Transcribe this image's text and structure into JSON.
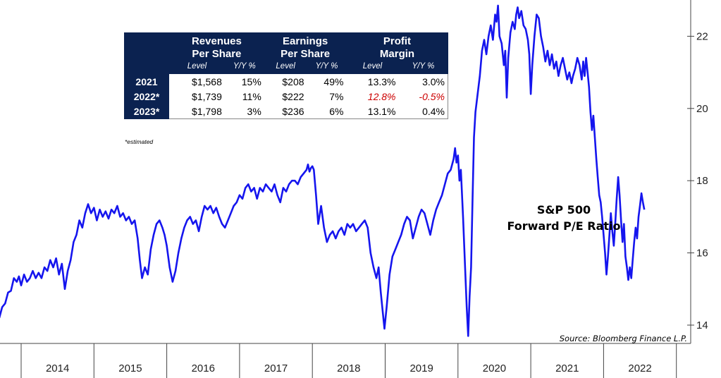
{
  "chart_data": {
    "type": "line",
    "title": "S&P 500",
    "subtitle": "Forward P/E Ratio",
    "source": "Source: Bloomberg Finance L.P.",
    "xlabel": "",
    "ylabel": "",
    "ylim": [
      13.4,
      23.0
    ],
    "xlim": [
      2013.7,
      2022.93
    ],
    "y_ticks": [
      {
        "value": 22,
        "label": "22"
      },
      {
        "value": 20,
        "label": "20"
      },
      {
        "value": 18,
        "label": "18"
      },
      {
        "value": 16,
        "label": "16"
      },
      {
        "value": 14,
        "label": "14"
      }
    ],
    "x_categories": [
      "2014",
      "2015",
      "2016",
      "2017",
      "2018",
      "2019",
      "2020",
      "2021",
      "2022"
    ],
    "series": [
      {
        "name": "S&P 500 Forward P/E",
        "color": "#1515ee",
        "points": [
          [
            2013.7,
            14.2
          ],
          [
            2013.74,
            14.5
          ],
          [
            2013.78,
            14.6
          ],
          [
            2013.82,
            14.9
          ],
          [
            2013.86,
            14.95
          ],
          [
            2013.9,
            15.3
          ],
          [
            2013.94,
            15.2
          ],
          [
            2013.97,
            15.35
          ],
          [
            2014.0,
            15.1
          ],
          [
            2014.04,
            15.4
          ],
          [
            2014.08,
            15.2
          ],
          [
            2014.12,
            15.3
          ],
          [
            2014.16,
            15.5
          ],
          [
            2014.2,
            15.3
          ],
          [
            2014.24,
            15.45
          ],
          [
            2014.28,
            15.3
          ],
          [
            2014.32,
            15.6
          ],
          [
            2014.36,
            15.5
          ],
          [
            2014.4,
            15.8
          ],
          [
            2014.44,
            15.6
          ],
          [
            2014.48,
            15.85
          ],
          [
            2014.52,
            15.4
          ],
          [
            2014.56,
            15.7
          ],
          [
            2014.6,
            15.0
          ],
          [
            2014.64,
            15.5
          ],
          [
            2014.68,
            15.8
          ],
          [
            2014.72,
            16.3
          ],
          [
            2014.76,
            16.5
          ],
          [
            2014.8,
            16.9
          ],
          [
            2014.84,
            16.7
          ],
          [
            2014.88,
            17.1
          ],
          [
            2014.92,
            17.35
          ],
          [
            2014.96,
            17.1
          ],
          [
            2015.0,
            17.25
          ],
          [
            2015.04,
            16.9
          ],
          [
            2015.08,
            17.2
          ],
          [
            2015.12,
            17.0
          ],
          [
            2015.16,
            17.15
          ],
          [
            2015.2,
            16.95
          ],
          [
            2015.24,
            17.2
          ],
          [
            2015.28,
            17.1
          ],
          [
            2015.32,
            17.3
          ],
          [
            2015.36,
            17.0
          ],
          [
            2015.4,
            17.1
          ],
          [
            2015.44,
            16.9
          ],
          [
            2015.48,
            17.0
          ],
          [
            2015.52,
            16.8
          ],
          [
            2015.56,
            16.9
          ],
          [
            2015.6,
            16.4
          ],
          [
            2015.63,
            15.8
          ],
          [
            2015.66,
            15.3
          ],
          [
            2015.7,
            15.6
          ],
          [
            2015.74,
            15.4
          ],
          [
            2015.78,
            16.1
          ],
          [
            2015.82,
            16.5
          ],
          [
            2015.86,
            16.8
          ],
          [
            2015.9,
            16.9
          ],
          [
            2015.94,
            16.7
          ],
          [
            2015.97,
            16.5
          ],
          [
            2016.0,
            16.2
          ],
          [
            2016.04,
            15.6
          ],
          [
            2016.08,
            15.2
          ],
          [
            2016.12,
            15.5
          ],
          [
            2016.16,
            16.0
          ],
          [
            2016.2,
            16.4
          ],
          [
            2016.24,
            16.7
          ],
          [
            2016.28,
            16.9
          ],
          [
            2016.32,
            17.0
          ],
          [
            2016.36,
            16.8
          ],
          [
            2016.4,
            16.9
          ],
          [
            2016.44,
            16.6
          ],
          [
            2016.48,
            17.0
          ],
          [
            2016.52,
            17.3
          ],
          [
            2016.56,
            17.2
          ],
          [
            2016.6,
            17.3
          ],
          [
            2016.64,
            17.1
          ],
          [
            2016.68,
            17.25
          ],
          [
            2016.72,
            17.0
          ],
          [
            2016.76,
            16.8
          ],
          [
            2016.8,
            16.7
          ],
          [
            2016.84,
            16.9
          ],
          [
            2016.88,
            17.1
          ],
          [
            2016.92,
            17.3
          ],
          [
            2016.96,
            17.4
          ],
          [
            2017.0,
            17.6
          ],
          [
            2017.04,
            17.5
          ],
          [
            2017.08,
            17.8
          ],
          [
            2017.12,
            17.9
          ],
          [
            2017.16,
            17.7
          ],
          [
            2017.2,
            17.8
          ],
          [
            2017.24,
            17.5
          ],
          [
            2017.28,
            17.8
          ],
          [
            2017.32,
            17.7
          ],
          [
            2017.36,
            17.9
          ],
          [
            2017.4,
            17.8
          ],
          [
            2017.44,
            17.7
          ],
          [
            2017.48,
            17.9
          ],
          [
            2017.52,
            17.6
          ],
          [
            2017.56,
            17.4
          ],
          [
            2017.6,
            17.8
          ],
          [
            2017.64,
            17.7
          ],
          [
            2017.68,
            17.9
          ],
          [
            2017.72,
            18.0
          ],
          [
            2017.76,
            18.0
          ],
          [
            2017.8,
            17.9
          ],
          [
            2017.84,
            18.1
          ],
          [
            2017.88,
            18.2
          ],
          [
            2017.92,
            18.3
          ],
          [
            2017.94,
            18.45
          ],
          [
            2017.96,
            18.25
          ],
          [
            2017.98,
            18.35
          ],
          [
            2018.0,
            18.4
          ],
          [
            2018.02,
            18.3
          ],
          [
            2018.05,
            17.6
          ],
          [
            2018.08,
            16.8
          ],
          [
            2018.12,
            17.3
          ],
          [
            2018.16,
            16.7
          ],
          [
            2018.2,
            16.3
          ],
          [
            2018.24,
            16.5
          ],
          [
            2018.28,
            16.6
          ],
          [
            2018.32,
            16.4
          ],
          [
            2018.36,
            16.6
          ],
          [
            2018.4,
            16.7
          ],
          [
            2018.44,
            16.5
          ],
          [
            2018.48,
            16.8
          ],
          [
            2018.52,
            16.7
          ],
          [
            2018.56,
            16.8
          ],
          [
            2018.6,
            16.6
          ],
          [
            2018.64,
            16.7
          ],
          [
            2018.68,
            16.8
          ],
          [
            2018.72,
            16.9
          ],
          [
            2018.76,
            16.7
          ],
          [
            2018.8,
            16.0
          ],
          [
            2018.84,
            15.6
          ],
          [
            2018.88,
            15.3
          ],
          [
            2018.91,
            15.6
          ],
          [
            2018.94,
            14.9
          ],
          [
            2018.97,
            14.3
          ],
          [
            2018.99,
            13.9
          ],
          [
            2019.02,
            14.5
          ],
          [
            2019.06,
            15.4
          ],
          [
            2019.1,
            15.9
          ],
          [
            2019.14,
            16.1
          ],
          [
            2019.18,
            16.3
          ],
          [
            2019.22,
            16.5
          ],
          [
            2019.26,
            16.8
          ],
          [
            2019.3,
            17.0
          ],
          [
            2019.34,
            16.9
          ],
          [
            2019.38,
            16.4
          ],
          [
            2019.42,
            16.7
          ],
          [
            2019.46,
            17.0
          ],
          [
            2019.5,
            17.2
          ],
          [
            2019.54,
            17.1
          ],
          [
            2019.58,
            16.8
          ],
          [
            2019.62,
            16.5
          ],
          [
            2019.66,
            16.9
          ],
          [
            2019.7,
            17.2
          ],
          [
            2019.74,
            17.4
          ],
          [
            2019.78,
            17.6
          ],
          [
            2019.82,
            17.9
          ],
          [
            2019.86,
            18.2
          ],
          [
            2019.9,
            18.3
          ],
          [
            2019.94,
            18.6
          ],
          [
            2019.96,
            18.9
          ],
          [
            2019.98,
            18.5
          ],
          [
            2020.0,
            18.7
          ],
          [
            2020.02,
            18.0
          ],
          [
            2020.04,
            18.3
          ],
          [
            2020.07,
            17.0
          ],
          [
            2020.1,
            15.5
          ],
          [
            2020.12,
            14.5
          ],
          [
            2020.14,
            13.7
          ],
          [
            2020.16,
            14.8
          ],
          [
            2020.18,
            15.6
          ],
          [
            2020.2,
            17.5
          ],
          [
            2020.22,
            19.2
          ],
          [
            2020.24,
            19.9
          ],
          [
            2020.27,
            20.4
          ],
          [
            2020.3,
            20.9
          ],
          [
            2020.33,
            21.6
          ],
          [
            2020.36,
            21.9
          ],
          [
            2020.39,
            21.5
          ],
          [
            2020.42,
            22.0
          ],
          [
            2020.45,
            22.3
          ],
          [
            2020.48,
            21.9
          ],
          [
            2020.51,
            22.6
          ],
          [
            2020.53,
            22.4
          ],
          [
            2020.55,
            22.85
          ],
          [
            2020.57,
            22.0
          ],
          [
            2020.6,
            21.8
          ],
          [
            2020.63,
            21.2
          ],
          [
            2020.65,
            21.6
          ],
          [
            2020.67,
            20.3
          ],
          [
            2020.69,
            21.4
          ],
          [
            2020.72,
            22.1
          ],
          [
            2020.75,
            22.4
          ],
          [
            2020.78,
            22.2
          ],
          [
            2020.8,
            22.6
          ],
          [
            2020.82,
            22.8
          ],
          [
            2020.84,
            22.5
          ],
          [
            2020.87,
            22.7
          ],
          [
            2020.9,
            22.3
          ],
          [
            2020.93,
            22.2
          ],
          [
            2020.96,
            21.9
          ],
          [
            2020.98,
            21.5
          ],
          [
            2021.0,
            20.4
          ],
          [
            2021.02,
            21.2
          ],
          [
            2021.05,
            22.0
          ],
          [
            2021.08,
            22.6
          ],
          [
            2021.11,
            22.5
          ],
          [
            2021.14,
            22.0
          ],
          [
            2021.17,
            21.7
          ],
          [
            2021.2,
            21.3
          ],
          [
            2021.23,
            21.6
          ],
          [
            2021.26,
            21.2
          ],
          [
            2021.29,
            21.5
          ],
          [
            2021.32,
            21.1
          ],
          [
            2021.35,
            21.3
          ],
          [
            2021.38,
            20.9
          ],
          [
            2021.41,
            21.2
          ],
          [
            2021.44,
            21.4
          ],
          [
            2021.47,
            21.1
          ],
          [
            2021.5,
            20.8
          ],
          [
            2021.53,
            21.0
          ],
          [
            2021.56,
            20.7
          ],
          [
            2021.58,
            20.9
          ],
          [
            2021.61,
            21.1
          ],
          [
            2021.64,
            21.4
          ],
          [
            2021.67,
            21.2
          ],
          [
            2021.7,
            20.8
          ],
          [
            2021.72,
            21.3
          ],
          [
            2021.74,
            20.9
          ],
          [
            2021.76,
            21.4
          ],
          [
            2021.78,
            21.0
          ],
          [
            2021.8,
            20.6
          ],
          [
            2021.82,
            19.9
          ],
          [
            2021.84,
            19.4
          ],
          [
            2021.86,
            19.8
          ],
          [
            2021.88,
            19.2
          ],
          [
            2021.9,
            18.6
          ],
          [
            2021.92,
            18.1
          ],
          [
            2021.94,
            17.6
          ],
          [
            2021.96,
            17.4
          ],
          [
            2021.98,
            17.0
          ],
          [
            2022.0,
            16.5
          ],
          [
            2022.02,
            16.0
          ],
          [
            2022.04,
            15.4
          ],
          [
            2022.06,
            15.9
          ],
          [
            2022.08,
            16.5
          ],
          [
            2022.1,
            17.1
          ],
          [
            2022.12,
            16.6
          ],
          [
            2022.14,
            16.2
          ],
          [
            2022.16,
            16.8
          ],
          [
            2022.18,
            17.5
          ],
          [
            2022.2,
            18.1
          ],
          [
            2022.22,
            17.6
          ],
          [
            2022.24,
            16.9
          ],
          [
            2022.26,
            16.3
          ],
          [
            2022.28,
            16.8
          ],
          [
            2022.3,
            15.9
          ],
          [
            2022.32,
            15.6
          ],
          [
            2022.34,
            15.25
          ],
          [
            2022.36,
            15.6
          ],
          [
            2022.38,
            15.3
          ],
          [
            2022.4,
            15.8
          ],
          [
            2022.42,
            16.3
          ],
          [
            2022.44,
            16.7
          ],
          [
            2022.46,
            16.4
          ],
          [
            2022.48,
            17.0
          ],
          [
            2022.5,
            17.3
          ],
          [
            2022.52,
            17.65
          ],
          [
            2022.54,
            17.4
          ],
          [
            2022.56,
            17.2
          ]
        ]
      }
    ]
  },
  "table": {
    "headers": {
      "group1": [
        "Revenues",
        "Per Share"
      ],
      "group2": [
        "Earnings",
        "Per Share"
      ],
      "group3": [
        "Profit",
        "Margin"
      ],
      "level": "Level",
      "yy": "Y/Y %"
    },
    "rows": [
      {
        "year": "2021",
        "rev_level": "$1,568",
        "rev_yy": "15%",
        "earn_level": "$208",
        "earn_yy": "49%",
        "margin_level": "13.3%",
        "margin_yy": "3.0%"
      },
      {
        "year": "2022*",
        "rev_level": "$1,739",
        "rev_yy": "11%",
        "earn_level": "$222",
        "earn_yy": "7%",
        "margin_level": "12.8%",
        "margin_yy": "-0.5%"
      },
      {
        "year": "2023*",
        "rev_level": "$1,798",
        "rev_yy": "3%",
        "earn_level": "$236",
        "earn_yy": "6%",
        "margin_level": "13.1%",
        "margin_yy": "0.4%"
      }
    ],
    "footnote": "*estimated"
  }
}
